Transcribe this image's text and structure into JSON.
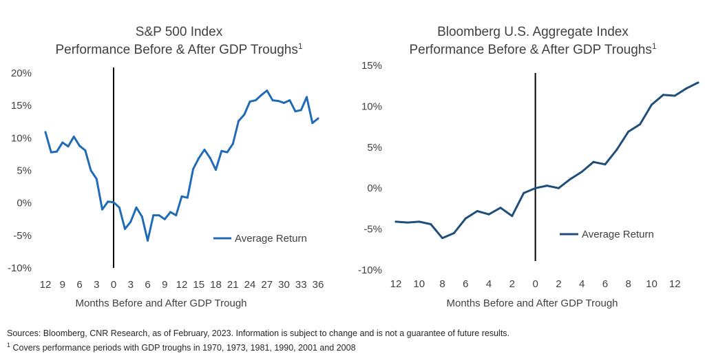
{
  "chart_data": [
    {
      "type": "line",
      "title": "S&P 500 Index",
      "subtitle": "Performance Before & After GDP Troughs",
      "title_superscript": "1",
      "xlabel": "Months Before and After GDP Trough",
      "ylabel": "",
      "x_tick_labels": [
        "12",
        "9",
        "6",
        "3",
        "0",
        "3",
        "6",
        "9",
        "12",
        "15",
        "18",
        "21",
        "24",
        "27",
        "30",
        "33",
        "36"
      ],
      "x_range": [
        -12,
        36
      ],
      "y_tick_labels": [
        "20%",
        "15%",
        "10%",
        "5%",
        "0%",
        "-5%",
        "-10%"
      ],
      "ylim": [
        -10,
        20
      ],
      "trough_marker_x": 0,
      "grid": false,
      "legend_position": "right",
      "series": [
        {
          "name": "Average Return",
          "color": "#1F6BB5",
          "x": [
            -12,
            -11,
            -10,
            -9,
            -8,
            -7,
            -6,
            -5,
            -4,
            -3,
            -2,
            -1,
            0,
            1,
            2,
            3,
            4,
            5,
            6,
            7,
            8,
            9,
            10,
            11,
            12,
            13,
            14,
            15,
            16,
            17,
            18,
            19,
            20,
            21,
            22,
            23,
            24,
            25,
            26,
            27,
            28,
            29,
            30,
            31,
            32,
            33,
            34,
            35,
            36
          ],
          "y": [
            10.9,
            7.8,
            7.9,
            9.3,
            8.7,
            10.2,
            8.8,
            8.1,
            5.0,
            3.7,
            -1.0,
            0.2,
            0.1,
            -0.7,
            -4.0,
            -2.9,
            -0.7,
            -2.1,
            -5.8,
            -1.9,
            -1.9,
            -2.5,
            -1.4,
            -1.9,
            1.0,
            0.8,
            5.2,
            6.9,
            8.2,
            6.9,
            5.1,
            8.0,
            7.8,
            9.1,
            12.6,
            13.6,
            15.6,
            15.8,
            16.6,
            17.3,
            15.8,
            15.7,
            15.4,
            15.8,
            14.1,
            14.3,
            16.3,
            12.3,
            13.0
          ]
        }
      ]
    },
    {
      "type": "line",
      "title": "Bloomberg U.S. Aggregate Index",
      "subtitle": "Performance Before & After GDP Troughs",
      "title_superscript": "1",
      "xlabel": "Months Before and After GDP Trough",
      "ylabel": "",
      "x_tick_labels": [
        "12",
        "10",
        "8",
        "6",
        "4",
        "2",
        "0",
        "2",
        "4",
        "6",
        "8",
        "10",
        "12"
      ],
      "x_range": [
        -12,
        14
      ],
      "y_tick_labels": [
        "15%",
        "10%",
        "5%",
        "0%",
        "-5%",
        "-10%"
      ],
      "ylim": [
        -10,
        15
      ],
      "trough_marker_x": 0,
      "grid": false,
      "legend_position": "right",
      "series": [
        {
          "name": "Average Return",
          "color": "#1F4E79",
          "x": [
            -12,
            -11,
            -10,
            -9,
            -8,
            -7,
            -6,
            -5,
            -4,
            -3,
            -2,
            -1,
            0,
            1,
            2,
            3,
            4,
            5,
            6,
            7,
            8,
            9,
            10,
            11,
            12,
            13,
            14
          ],
          "y": [
            -4.1,
            -4.2,
            -4.1,
            -4.4,
            -6.1,
            -5.5,
            -3.7,
            -2.8,
            -3.2,
            -2.4,
            -3.4,
            -0.6,
            0.0,
            0.3,
            0.0,
            1.1,
            2.0,
            3.2,
            2.9,
            4.7,
            6.9,
            7.8,
            10.2,
            11.4,
            11.3,
            12.2,
            12.9
          ]
        }
      ]
    }
  ],
  "footnotes": {
    "sources": "Sources: Bloomberg, CNR Research, as of February, 2023.  Information is subject to change and is not a guarantee of future results.",
    "note_marker": "1",
    "note": "Covers performance periods with GDP troughs in 1970, 1973, 1981, 1990, 2001 and 2008"
  }
}
